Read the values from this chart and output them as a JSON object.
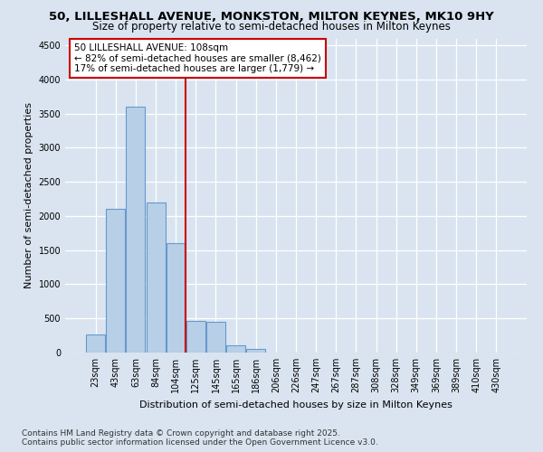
{
  "title": "50, LILLESHALL AVENUE, MONKSTON, MILTON KEYNES, MK10 9HY",
  "subtitle": "Size of property relative to semi-detached houses in Milton Keynes",
  "xlabel": "Distribution of semi-detached houses by size in Milton Keynes",
  "ylabel": "Number of semi-detached properties",
  "categories": [
    "23sqm",
    "43sqm",
    "63sqm",
    "84sqm",
    "104sqm",
    "125sqm",
    "145sqm",
    "165sqm",
    "186sqm",
    "206sqm",
    "226sqm",
    "247sqm",
    "267sqm",
    "287sqm",
    "308sqm",
    "328sqm",
    "349sqm",
    "369sqm",
    "389sqm",
    "410sqm",
    "430sqm"
  ],
  "values": [
    270,
    2100,
    3600,
    2200,
    1600,
    460,
    450,
    110,
    55,
    0,
    0,
    0,
    0,
    0,
    0,
    0,
    0,
    0,
    0,
    0,
    0
  ],
  "bar_color": "#b8cfe8",
  "bar_edge_color": "#6699cc",
  "red_line_x": 4.5,
  "annotation_text": "50 LILLESHALL AVENUE: 108sqm\n← 82% of semi-detached houses are smaller (8,462)\n17% of semi-detached houses are larger (1,779) →",
  "annotation_box_color": "#ffffff",
  "annotation_box_edge_color": "#cc0000",
  "ylim": [
    0,
    4600
  ],
  "yticks": [
    0,
    500,
    1000,
    1500,
    2000,
    2500,
    3000,
    3500,
    4000,
    4500
  ],
  "background_color": "#d9e4f0",
  "plot_bg_color": "#d9e4f0",
  "footer1": "Contains HM Land Registry data © Crown copyright and database right 2025.",
  "footer2": "Contains public sector information licensed under the Open Government Licence v3.0.",
  "grid_color": "#ffffff",
  "title_fontsize": 9.5,
  "subtitle_fontsize": 8.5,
  "ylabel_fontsize": 8,
  "xlabel_fontsize": 8,
  "tick_fontsize": 7,
  "annotation_fontsize": 7.5,
  "footer_fontsize": 6.5
}
